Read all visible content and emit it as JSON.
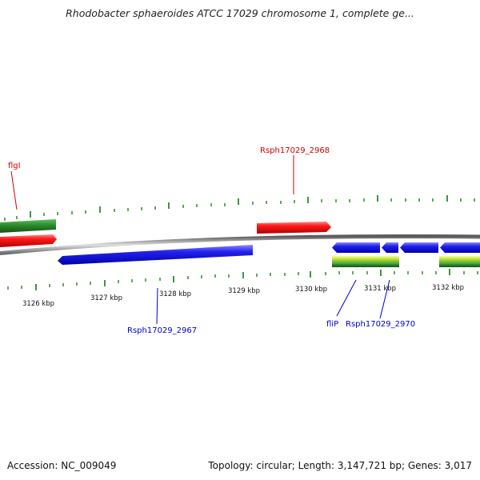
{
  "title": "Rhodobacter sphaeroides ATCC 17029 chromosome 1, complete ge...",
  "ticks": {
    "labels": [
      "3126 kbp",
      "3127 kbp",
      "3128 kbp",
      "3129 kbp",
      "3130 kbp",
      "3131 kbp",
      "3132 kbp"
    ]
  },
  "genes": [
    {
      "label": "flgI",
      "color": "#cc0000"
    },
    {
      "label": "Rsph17029_2968",
      "color": "#cc0000"
    },
    {
      "label": "Rsph17029_2967",
      "color": "#0000cc"
    },
    {
      "label": "fliP",
      "color": "#0000cc"
    },
    {
      "label": "Rsph17029_2970",
      "color": "#0000cc"
    }
  ],
  "colors": {
    "forward": "#ee1111",
    "reverse": "#1a1ae6",
    "green_track": "#2d8a2d",
    "lime_track": "#b8e03a",
    "backbone": "#8c8c8c",
    "tick": "#2a8a2a"
  },
  "footer": {
    "accession": "Accession: NC_009049",
    "summary": "Topology: circular; Length: 3,147,721 bp; Genes: 3,017"
  }
}
